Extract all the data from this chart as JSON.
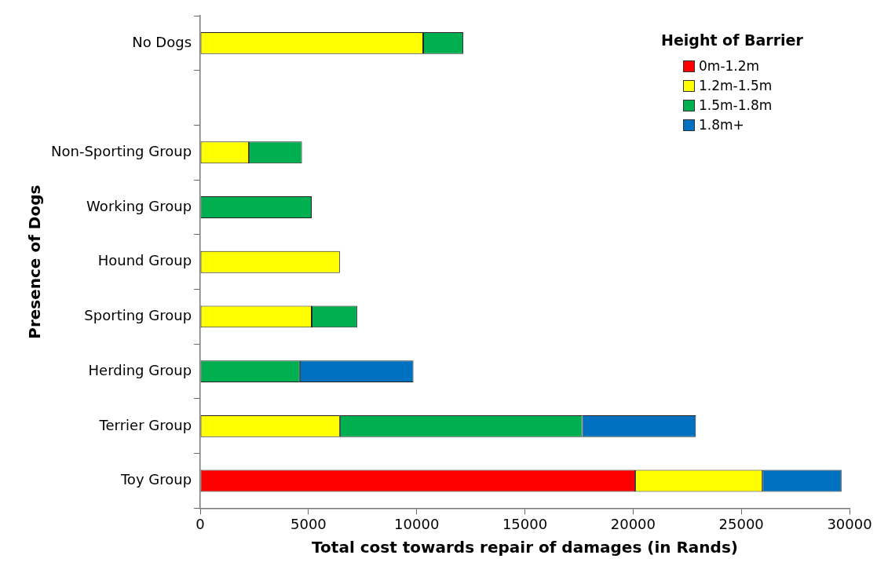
{
  "chart_data": {
    "type": "bar",
    "orientation": "horizontal",
    "stacked": true,
    "xlabel": "Total cost towards repair of damages (in Rands)",
    "ylabel": "Presence of Dogs",
    "legend_title": "Height of Barrier",
    "legend": "top right",
    "grid": false,
    "categories": [
      "No Dogs",
      null,
      "Non-Sporting Group",
      "Working Group",
      "Hound Group",
      "Sporting Group",
      "Herding Group",
      "Terrier Group",
      "Toy Group"
    ],
    "xlim": [
      0,
      30000
    ],
    "xticks": [
      0,
      5000,
      10000,
      15000,
      20000,
      25000,
      30000
    ],
    "series": [
      {
        "name": "0m-1.2m",
        "color": "#ff0000",
        "values": [
          null,
          null,
          null,
          null,
          null,
          null,
          null,
          null,
          20100
        ]
      },
      {
        "name": "1.2m-1.5m",
        "color": "#ffff00",
        "values": [
          10300,
          null,
          2250,
          null,
          6450,
          5150,
          null,
          6450,
          5880
        ]
      },
      {
        "name": "1.5m-1.8m",
        "color": "#00b050",
        "values": [
          1850,
          null,
          2450,
          5150,
          null,
          2100,
          4600,
          11200,
          null
        ]
      },
      {
        "name": "1.8m+",
        "color": "#0070c0",
        "values": [
          null,
          null,
          null,
          null,
          null,
          null,
          5250,
          5250,
          3650
        ]
      }
    ]
  }
}
